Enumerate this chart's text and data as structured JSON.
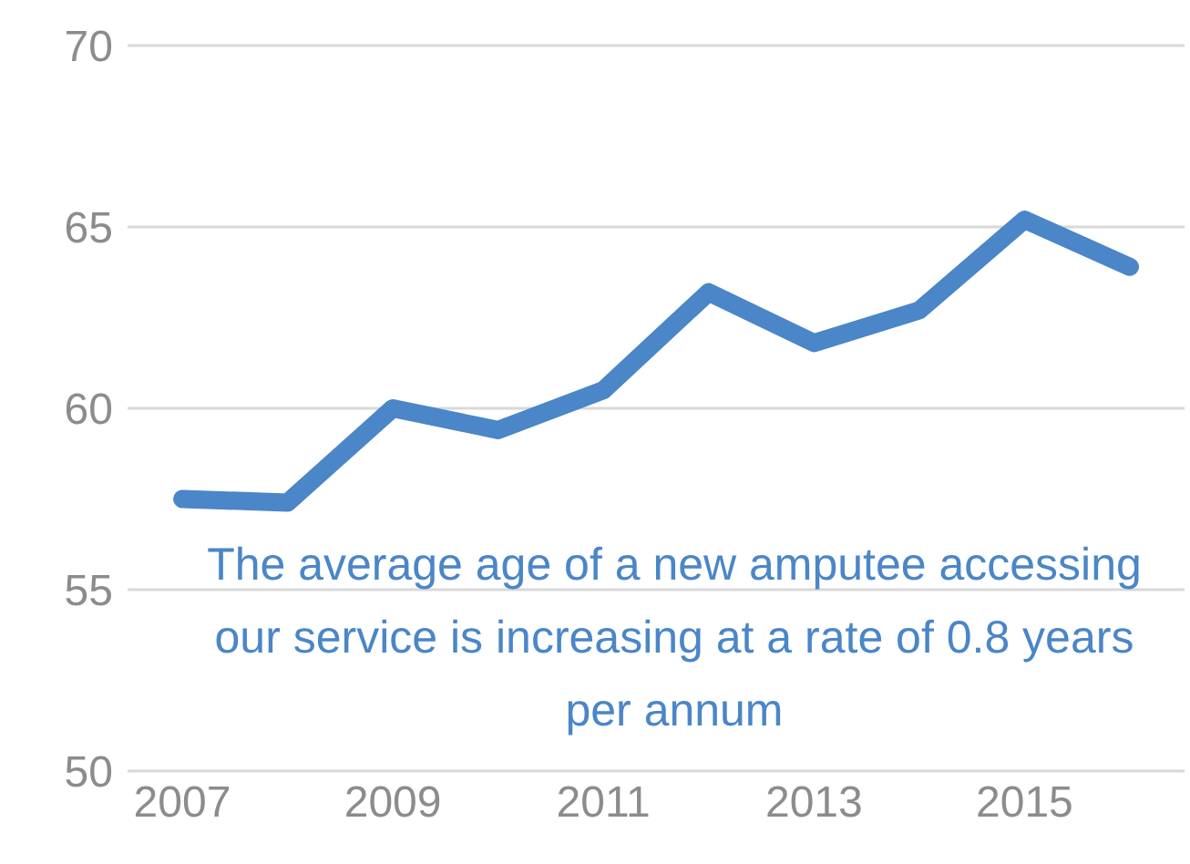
{
  "chart_data": {
    "type": "line",
    "categories": [
      "2007",
      null,
      "2009",
      null,
      "2011",
      null,
      "2013",
      null,
      "2015",
      null
    ],
    "values": [
      57.5,
      57.4,
      60.0,
      59.4,
      60.5,
      63.2,
      61.8,
      62.7,
      65.2,
      63.9
    ],
    "color": "#4a86c8",
    "ylim": [
      50,
      70
    ],
    "yticks": [
      50,
      55,
      60,
      65,
      70
    ],
    "grid": "y",
    "annotations": [
      "The average age of a new amputee accessing our service is increasing at a rate of 0.8 years per annum"
    ]
  }
}
